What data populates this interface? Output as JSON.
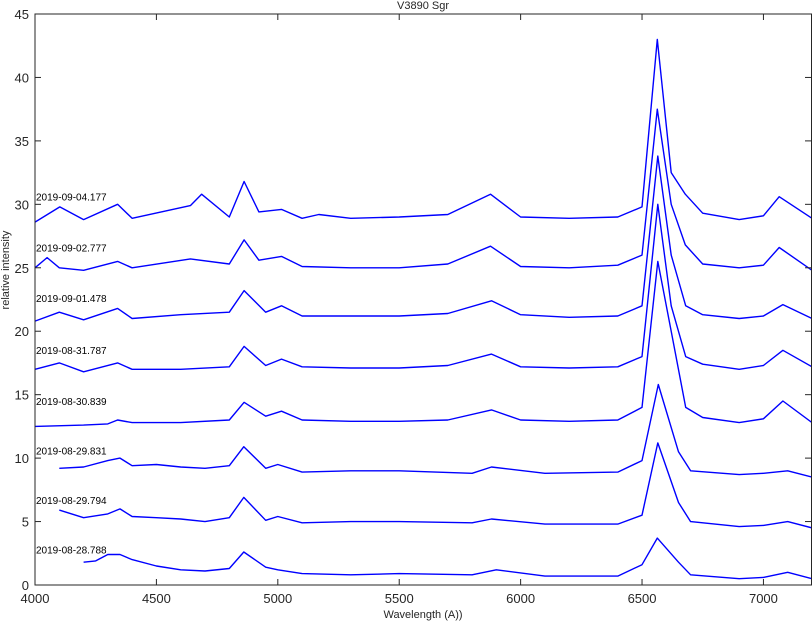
{
  "chart_data": {
    "type": "line",
    "title": "V3890 Sgr",
    "xlabel": "Wavelength (A))",
    "ylabel": "relative intensity",
    "xlim": [
      4000,
      7200
    ],
    "ylim": [
      0,
      45
    ],
    "xticks": [
      4000,
      4500,
      5000,
      5500,
      6000,
      6500,
      7000
    ],
    "yticks": [
      0,
      5,
      10,
      15,
      20,
      25,
      30,
      35,
      40,
      45
    ],
    "grid": false,
    "line_color": "#0000ff",
    "series": [
      {
        "name": "2019-08-28.788",
        "label_y": 2.5,
        "x": [
          4200,
          4250,
          4300,
          4350,
          4400,
          4500,
          4600,
          4700,
          4800,
          4860,
          4950,
          5000,
          5100,
          5300,
          5500,
          5800,
          5900,
          6100,
          6400,
          6500,
          6563,
          6650,
          6700,
          6900,
          7000,
          7100,
          7200
        ],
        "y": [
          1.8,
          1.9,
          2.4,
          2.4,
          2.0,
          1.5,
          1.2,
          1.1,
          1.3,
          2.6,
          1.4,
          1.2,
          0.9,
          0.8,
          0.9,
          0.8,
          1.2,
          0.7,
          0.7,
          1.6,
          3.7,
          1.8,
          0.8,
          0.5,
          0.6,
          1.0,
          0.5
        ]
      },
      {
        "name": "2019-08-29.794",
        "label_y": 6.4,
        "x": [
          4100,
          4200,
          4300,
          4350,
          4400,
          4500,
          4600,
          4700,
          4800,
          4860,
          4950,
          5000,
          5100,
          5300,
          5500,
          5800,
          5880,
          6100,
          6400,
          6500,
          6565,
          6650,
          6700,
          6900,
          7000,
          7100,
          7200
        ],
        "y": [
          5.9,
          5.3,
          5.6,
          6.0,
          5.4,
          5.3,
          5.2,
          5.0,
          5.3,
          6.9,
          5.1,
          5.4,
          4.9,
          5.0,
          5.0,
          4.9,
          5.2,
          4.8,
          4.8,
          5.5,
          11.2,
          6.5,
          5.0,
          4.6,
          4.7,
          5.0,
          4.5
        ]
      },
      {
        "name": "2019-08-29.831",
        "label_y": 10.3,
        "x": [
          4100,
          4200,
          4300,
          4350,
          4400,
          4500,
          4600,
          4700,
          4800,
          4860,
          4950,
          5000,
          5100,
          5300,
          5500,
          5800,
          5880,
          6100,
          6400,
          6500,
          6567,
          6650,
          6700,
          6900,
          7000,
          7100,
          7200
        ],
        "y": [
          9.2,
          9.3,
          9.8,
          10.0,
          9.4,
          9.5,
          9.3,
          9.2,
          9.4,
          10.9,
          9.2,
          9.5,
          8.9,
          9.0,
          9.0,
          8.8,
          9.3,
          8.8,
          8.9,
          9.8,
          15.8,
          10.5,
          9.0,
          8.7,
          8.8,
          9.0,
          8.5
        ]
      },
      {
        "name": "2019-08-30.839",
        "label_y": 14.2,
        "x": [
          4000,
          4200,
          4300,
          4340,
          4400,
          4600,
          4800,
          4861,
          4950,
          5015,
          5100,
          5300,
          5500,
          5700,
          5880,
          6000,
          6200,
          6400,
          6500,
          6565,
          6620,
          6680,
          6750,
          6900,
          7000,
          7080,
          7200
        ],
        "y": [
          12.5,
          12.6,
          12.7,
          13.0,
          12.8,
          12.8,
          13.0,
          14.4,
          13.3,
          13.7,
          13.0,
          12.9,
          12.9,
          13.0,
          13.8,
          13.0,
          12.9,
          13.0,
          14.0,
          25.5,
          20.0,
          14.0,
          13.2,
          12.8,
          13.1,
          14.5,
          12.8
        ]
      },
      {
        "name": "2019-08-31.787",
        "label_y": 18.2,
        "x": [
          4000,
          4100,
          4200,
          4340,
          4400,
          4600,
          4800,
          4861,
          4950,
          5015,
          5100,
          5300,
          5500,
          5700,
          5880,
          6000,
          6200,
          6400,
          6500,
          6565,
          6620,
          6680,
          6750,
          6900,
          7000,
          7080,
          7200
        ],
        "y": [
          17.0,
          17.5,
          16.8,
          17.5,
          17.0,
          17.0,
          17.2,
          18.8,
          17.3,
          17.8,
          17.2,
          17.1,
          17.1,
          17.3,
          18.2,
          17.2,
          17.1,
          17.2,
          18.0,
          30.0,
          22.0,
          18.0,
          17.4,
          17.0,
          17.3,
          18.5,
          17.2
        ]
      },
      {
        "name": "2019-09-01.478",
        "label_y": 22.3,
        "x": [
          4000,
          4100,
          4200,
          4340,
          4400,
          4600,
          4800,
          4861,
          4950,
          5015,
          5100,
          5300,
          5500,
          5700,
          5880,
          6000,
          6200,
          6400,
          6500,
          6565,
          6620,
          6680,
          6750,
          6900,
          7000,
          7080,
          7200
        ],
        "y": [
          20.8,
          21.5,
          20.9,
          21.8,
          21.0,
          21.3,
          21.5,
          23.2,
          21.5,
          22.0,
          21.2,
          21.2,
          21.2,
          21.4,
          22.4,
          21.3,
          21.1,
          21.2,
          22.0,
          33.8,
          26.0,
          22.0,
          21.3,
          21.0,
          21.2,
          22.1,
          21.0
        ]
      },
      {
        "name": "2019-09-02.777",
        "label_y": 26.3,
        "x": [
          4000,
          4050,
          4100,
          4200,
          4340,
          4400,
          4640,
          4800,
          4861,
          4922,
          5015,
          5100,
          5300,
          5500,
          5700,
          5876,
          6000,
          6200,
          6400,
          6500,
          6563,
          6620,
          6678,
          6750,
          6900,
          7000,
          7065,
          7200
        ],
        "y": [
          25.0,
          25.8,
          25.0,
          24.8,
          25.5,
          25.0,
          25.7,
          25.3,
          27.2,
          25.6,
          25.9,
          25.1,
          25.0,
          25.0,
          25.3,
          26.7,
          25.1,
          25.0,
          25.2,
          26.0,
          37.5,
          30.0,
          26.8,
          25.3,
          25.0,
          25.2,
          26.6,
          24.8
        ]
      },
      {
        "name": "2019-09-04.177",
        "label_y": 30.3,
        "x": [
          4000,
          4102,
          4200,
          4340,
          4400,
          4640,
          4686,
          4800,
          4861,
          4922,
          5015,
          5100,
          5169,
          5300,
          5500,
          5700,
          5876,
          6000,
          6200,
          6400,
          6500,
          6563,
          6620,
          6678,
          6750,
          6900,
          7000,
          7065,
          7200
        ],
        "y": [
          28.6,
          29.8,
          28.8,
          30.0,
          28.9,
          29.9,
          30.8,
          29.0,
          31.8,
          29.4,
          29.6,
          28.9,
          29.2,
          28.9,
          29.0,
          29.2,
          30.8,
          29.0,
          28.9,
          29.0,
          29.8,
          43.0,
          32.5,
          30.8,
          29.3,
          28.8,
          29.1,
          30.6,
          28.9
        ]
      }
    ]
  }
}
